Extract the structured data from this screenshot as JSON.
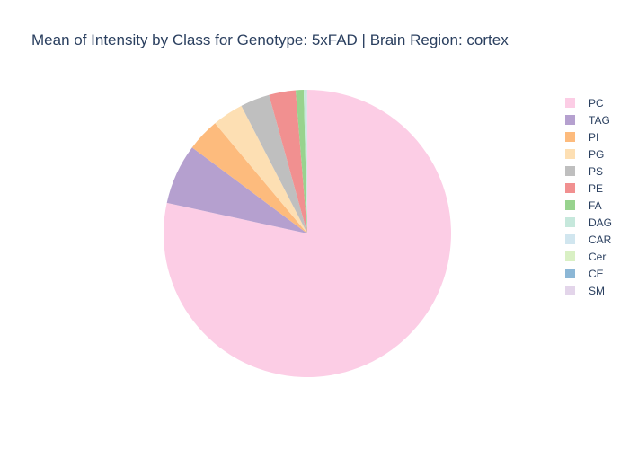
{
  "chart_data": {
    "type": "pie",
    "title": "Mean of Intensity by Class for Genotype: 5xFAD | Brain Region: cortex",
    "legend_position": "right",
    "direction": "clockwise",
    "start_angle": "top",
    "slices": [
      {
        "label": "PC",
        "value": 0.785,
        "color": "#fccde5"
      },
      {
        "label": "TAG",
        "value": 0.068,
        "color": "#b5a0cf"
      },
      {
        "label": "PI",
        "value": 0.037,
        "color": "#fdbb7d"
      },
      {
        "label": "PG",
        "value": 0.035,
        "color": "#fddfb3"
      },
      {
        "label": "PS",
        "value": 0.033,
        "color": "#bfbfbf"
      },
      {
        "label": "PE",
        "value": 0.03,
        "color": "#f19090"
      },
      {
        "label": "FA",
        "value": 0.009,
        "color": "#98d38e"
      },
      {
        "label": "DAG",
        "value": 0.003,
        "color": "#c6e8dc"
      },
      {
        "label": "CAR",
        "value": 0.0004,
        "color": "#d1e6ef"
      },
      {
        "label": "Cer",
        "value": 0.0003,
        "color": "#d9f0c4"
      },
      {
        "label": "CE",
        "value": 0.0002,
        "color": "#8cb7d6"
      },
      {
        "label": "SM",
        "value": 0.0001,
        "color": "#e3d5ea"
      }
    ]
  }
}
